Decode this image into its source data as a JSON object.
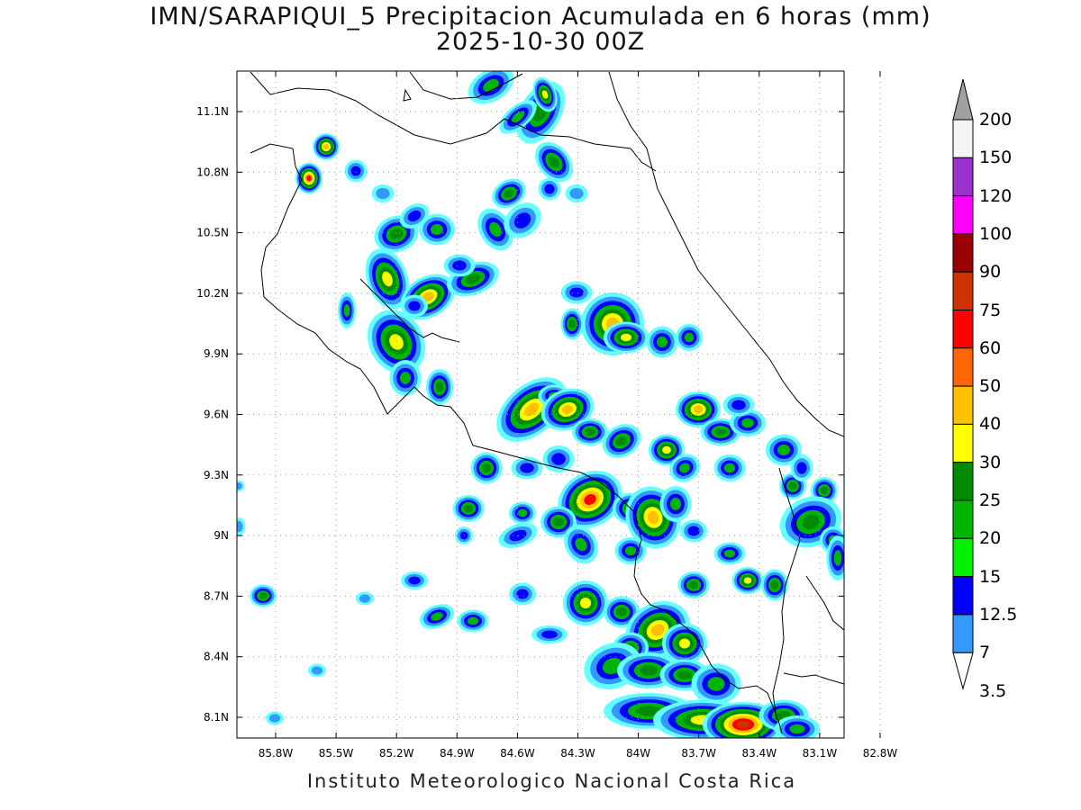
{
  "title": {
    "line1": "IMN/SARAPIQUI_5 Precipitacion Acumulada en 6 horas (mm)",
    "line2": "2025-10-30 00Z"
  },
  "map": {
    "lon_ticks": [
      "85.8W",
      "85.5W",
      "85.2W",
      "84.9W",
      "84.6W",
      "84.3W",
      "84W",
      "83.7W",
      "83.4W",
      "83.1W",
      "82.8W"
    ],
    "lat_ticks": [
      "11.1N",
      "10.8N",
      "10.5N",
      "10.2N",
      "9.9N",
      "9.6N",
      "9.3N",
      "9N",
      "8.7N",
      "8.4N",
      "8.1N"
    ],
    "grid": "dotted",
    "variable": "6-hour accumulated precipitation (mm)"
  },
  "colorbar": {
    "labels": [
      "200",
      "150",
      "120",
      "100",
      "90",
      "75",
      "60",
      "50",
      "40",
      "30",
      "25",
      "20",
      "15",
      "12.5",
      "7",
      "3.5"
    ],
    "colors": [
      "#a0a0a0",
      "#f5f5f5",
      "#9a32cd",
      "#ff00ff",
      "#990000",
      "#cd3300",
      "#ff0000",
      "#ff6600",
      "#ffc000",
      "#ffff00",
      "#008b00",
      "#00b400",
      "#00f000",
      "#0000ff",
      "#3399ff",
      "#66ffff"
    ]
  },
  "credit": "Instituto Meteorologico Nacional Costa Rica"
}
